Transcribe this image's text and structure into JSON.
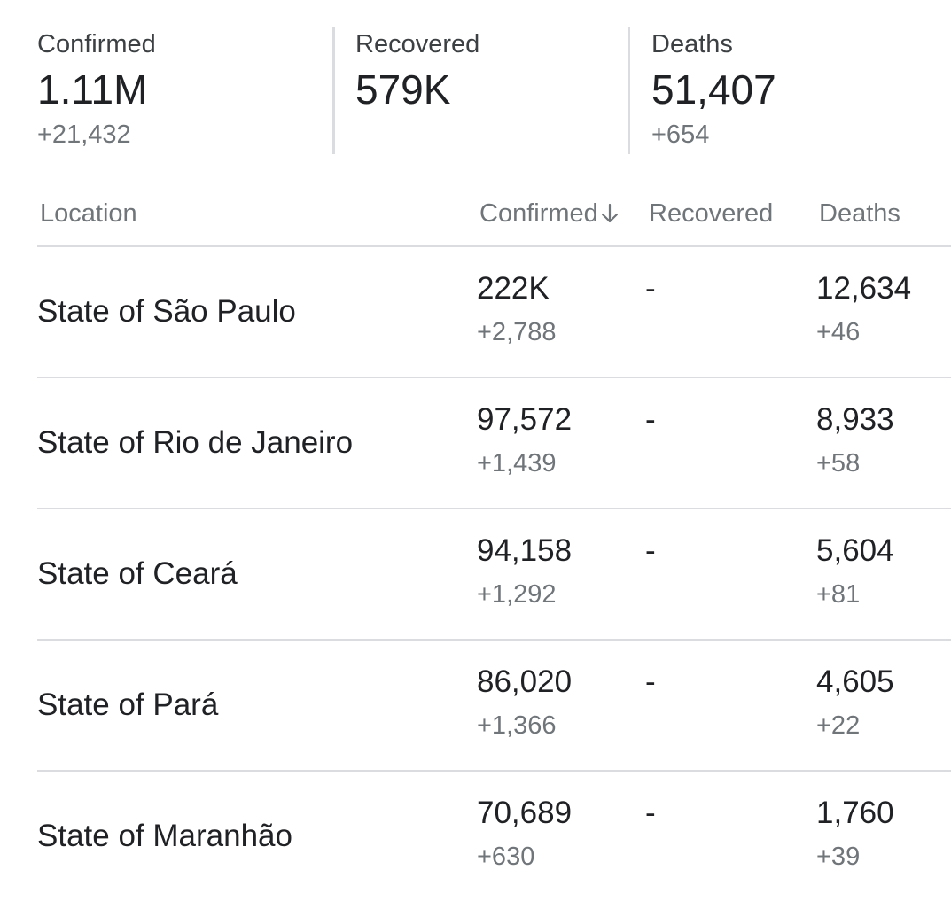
{
  "summary": {
    "confirmed": {
      "label": "Confirmed",
      "value": "1.11M",
      "delta": "+21,432"
    },
    "recovered": {
      "label": "Recovered",
      "value": "579K",
      "delta": ""
    },
    "deaths": {
      "label": "Deaths",
      "value": "51,407",
      "delta": "+654"
    }
  },
  "table": {
    "headers": {
      "location": "Location",
      "confirmed": "Confirmed",
      "recovered": "Recovered",
      "deaths": "Deaths"
    },
    "sort_icon": "arrow-down-icon",
    "rows": [
      {
        "location": "State of São Paulo",
        "confirmed": "222K",
        "confirmed_delta": "+2,788",
        "recovered": "-",
        "deaths": "12,634",
        "deaths_delta": "+46"
      },
      {
        "location": "State of Rio de Janeiro",
        "confirmed": "97,572",
        "confirmed_delta": "+1,439",
        "recovered": "-",
        "deaths": "8,933",
        "deaths_delta": "+58"
      },
      {
        "location": "State of Ceará",
        "confirmed": "94,158",
        "confirmed_delta": "+1,292",
        "recovered": "-",
        "deaths": "5,604",
        "deaths_delta": "+81"
      },
      {
        "location": "State of Pará",
        "confirmed": "86,020",
        "confirmed_delta": "+1,366",
        "recovered": "-",
        "deaths": "4,605",
        "deaths_delta": "+22"
      },
      {
        "location": "State of Maranhão",
        "confirmed": "70,689",
        "confirmed_delta": "+630",
        "recovered": "-",
        "deaths": "1,760",
        "deaths_delta": "+39"
      }
    ]
  },
  "colors": {
    "text_primary": "#202124",
    "text_secondary": "#70757a",
    "divider": "#dadce0"
  }
}
